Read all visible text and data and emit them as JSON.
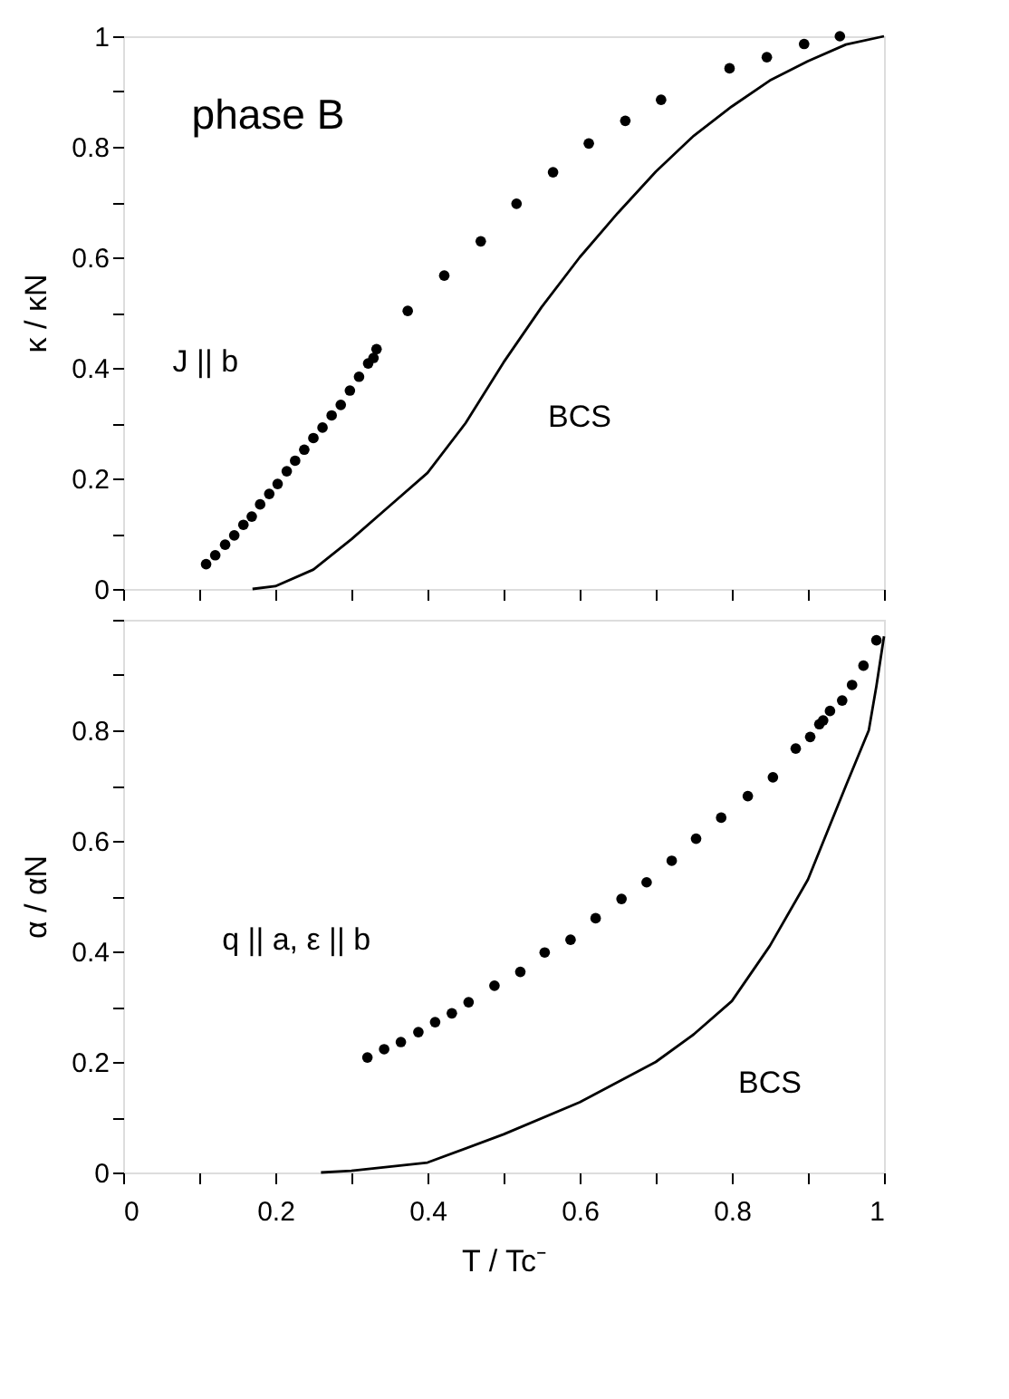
{
  "chart_data": [
    {
      "type": "scatter",
      "ylabel": "κ / κN",
      "xlim": [
        0,
        1
      ],
      "ylim": [
        0,
        1
      ],
      "xticks": [
        0,
        {
          "value": 0.1,
          "label": null
        },
        0.2,
        {
          "value": 0.3,
          "label": null
        },
        0.4,
        {
          "value": 0.5,
          "label": null
        },
        0.6,
        {
          "value": 0.7,
          "label": null
        },
        0.8,
        {
          "value": 0.9,
          "label": null
        },
        1
      ],
      "yticks": [
        0,
        {
          "value": 0.1,
          "label": null
        },
        0.2,
        {
          "value": 0.3,
          "label": null
        },
        0.4,
        {
          "value": 0.5,
          "label": null
        },
        0.6,
        {
          "value": 0.7,
          "label": null
        },
        0.8,
        {
          "value": 0.9,
          "label": null
        },
        1
      ],
      "tick_labels": "y",
      "series": [
        {
          "color": "#000000",
          "marker": "circle",
          "x": [
            0.109,
            0.121,
            0.134,
            0.146,
            0.158,
            0.169,
            0.18,
            0.192,
            0.203,
            0.215,
            0.226,
            0.238,
            0.25,
            0.262,
            0.274,
            0.286,
            0.298,
            0.31,
            0.322,
            0.329,
            0.333,
            0.374,
            0.422,
            0.47,
            0.517,
            0.565,
            0.612,
            0.66,
            0.707,
            0.797,
            0.846,
            0.895,
            0.942
          ],
          "values": [
            0.045,
            0.061,
            0.08,
            0.097,
            0.116,
            0.131,
            0.153,
            0.172,
            0.19,
            0.213,
            0.232,
            0.252,
            0.273,
            0.292,
            0.314,
            0.333,
            0.359,
            0.384,
            0.408,
            0.418,
            0.434,
            0.503,
            0.567,
            0.629,
            0.697,
            0.754,
            0.806,
            0.847,
            0.885,
            0.942,
            0.962,
            0.986,
            1.0
          ]
        },
        {
          "type": "line",
          "color": "#000000",
          "line_style": "solid",
          "x": [
            0.17,
            0.2,
            0.25,
            0.3,
            0.35,
            0.4,
            0.45,
            0.5,
            0.55,
            0.6,
            0.65,
            0.7,
            0.75,
            0.8,
            0.85,
            0.9,
            0.95,
            1.0
          ],
          "values": [
            0,
            0.005,
            0.035,
            0.09,
            0.15,
            0.21,
            0.3,
            0.41,
            0.51,
            0.6,
            0.68,
            0.755,
            0.82,
            0.873,
            0.92,
            0.955,
            0.985,
            1.0
          ]
        }
      ],
      "annotations": [
        "phase B",
        "J || b",
        "BCS"
      ]
    },
    {
      "type": "scatter",
      "ylabel": "α / αN",
      "xlabel": "T / Tc⁻",
      "xlim": [
        0,
        1
      ],
      "ylim": [
        0,
        1
      ],
      "xticks": [
        0,
        {
          "value": 0.1,
          "label": null
        },
        0.2,
        {
          "value": 0.3,
          "label": null
        },
        0.4,
        {
          "value": 0.5,
          "label": null
        },
        0.6,
        {
          "value": 0.7,
          "label": null
        },
        0.8,
        {
          "value": 0.9,
          "label": null
        },
        1
      ],
      "yticks": [
        0,
        {
          "value": 0.1,
          "label": null
        },
        0.2,
        {
          "value": 0.3,
          "label": null
        },
        0.4,
        {
          "value": 0.5,
          "label": null
        },
        0.6,
        {
          "value": 0.7,
          "label": null
        },
        0.8,
        {
          "value": 0.9,
          "label": null
        },
        {
          "value": 1,
          "label": null
        }
      ],
      "series": [
        {
          "color": "#000000",
          "marker": "circle",
          "x": [
            0.321,
            0.343,
            0.365,
            0.388,
            0.41,
            0.432,
            0.454,
            0.488,
            0.522,
            0.554,
            0.588,
            0.621,
            0.655,
            0.688,
            0.721,
            0.753,
            0.786,
            0.821,
            0.854,
            0.884,
            0.903,
            0.915,
            0.92,
            0.929,
            0.945,
            0.958,
            0.973,
            0.99
          ],
          "values": [
            0.208,
            0.223,
            0.236,
            0.254,
            0.272,
            0.288,
            0.308,
            0.338,
            0.363,
            0.398,
            0.421,
            0.46,
            0.495,
            0.525,
            0.564,
            0.604,
            0.642,
            0.681,
            0.715,
            0.767,
            0.788,
            0.811,
            0.818,
            0.835,
            0.854,
            0.882,
            0.917,
            0.963
          ]
        },
        {
          "type": "line",
          "color": "#000000",
          "line_style": "solid",
          "x": [
            0.26,
            0.3,
            0.4,
            0.5,
            0.6,
            0.7,
            0.75,
            0.8,
            0.85,
            0.9,
            0.95,
            0.98,
            0.99,
            1.0
          ],
          "values": [
            0,
            0.003,
            0.018,
            0.069,
            0.127,
            0.2,
            0.25,
            0.31,
            0.41,
            0.53,
            0.7,
            0.8,
            0.88,
            0.97
          ]
        }
      ],
      "annotations": [
        "q || a, ε || b",
        "BCS"
      ]
    }
  ]
}
